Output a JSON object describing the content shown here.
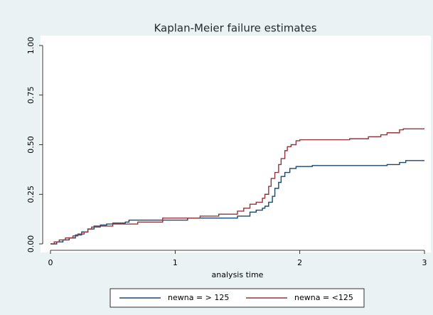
{
  "chart_data": {
    "type": "step",
    "title": "Kaplan-Meier failure estimates",
    "x_label": "analysis time",
    "xlim": [
      0,
      3
    ],
    "xticks": [
      0,
      1,
      2,
      3
    ],
    "ylim": [
      0,
      1
    ],
    "yticks": [
      {
        "value": 0,
        "label": "0.00"
      },
      {
        "value": 0.25,
        "label": "0.25"
      },
      {
        "value": 0.5,
        "label": "0.50"
      },
      {
        "value": 0.75,
        "label": "0.75"
      },
      {
        "value": 1,
        "label": "1.00"
      }
    ],
    "legend": "bottom",
    "series": [
      {
        "name": "newna = > 125",
        "color": "#1a476f",
        "x": [
          0,
          0.05,
          0.1,
          0.15,
          0.2,
          0.25,
          0.3,
          0.35,
          0.4,
          0.45,
          0.5,
          0.6,
          0.63,
          1.1,
          1.5,
          1.6,
          1.65,
          1.7,
          1.72,
          1.75,
          1.78,
          1.8,
          1.83,
          1.85,
          1.88,
          1.92,
          1.97,
          2.1,
          2.7,
          2.8,
          2.85,
          3
        ],
        "values": [
          0,
          0.01,
          0.02,
          0.03,
          0.045,
          0.06,
          0.075,
          0.09,
          0.095,
          0.1,
          0.105,
          0.11,
          0.12,
          0.13,
          0.14,
          0.16,
          0.17,
          0.18,
          0.19,
          0.21,
          0.24,
          0.28,
          0.31,
          0.34,
          0.36,
          0.38,
          0.39,
          0.395,
          0.4,
          0.41,
          0.42,
          0.42
        ]
      },
      {
        "name": "newna = <125",
        "color": "#90353b",
        "x": [
          0,
          0.03,
          0.07,
          0.12,
          0.18,
          0.22,
          0.27,
          0.3,
          0.33,
          0.4,
          0.5,
          0.7,
          0.9,
          1.2,
          1.35,
          1.5,
          1.55,
          1.6,
          1.65,
          1.7,
          1.72,
          1.75,
          1.77,
          1.8,
          1.83,
          1.85,
          1.88,
          1.9,
          1.93,
          1.97,
          2.0,
          2.4,
          2.55,
          2.65,
          2.7,
          2.8,
          2.83,
          3
        ],
        "values": [
          0,
          0.01,
          0.02,
          0.03,
          0.04,
          0.05,
          0.06,
          0.075,
          0.085,
          0.09,
          0.1,
          0.11,
          0.13,
          0.14,
          0.15,
          0.165,
          0.18,
          0.2,
          0.21,
          0.23,
          0.25,
          0.29,
          0.33,
          0.36,
          0.4,
          0.43,
          0.47,
          0.49,
          0.5,
          0.52,
          0.525,
          0.53,
          0.54,
          0.55,
          0.56,
          0.575,
          0.58,
          0.58
        ]
      }
    ]
  }
}
